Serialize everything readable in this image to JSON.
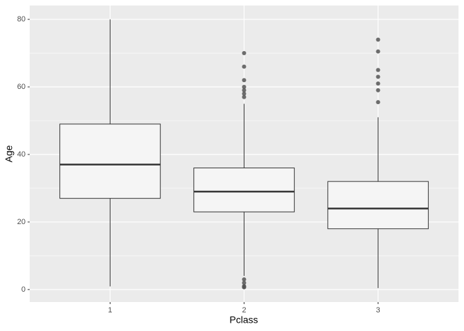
{
  "chart_data": {
    "type": "box",
    "x_label": "Pclass",
    "y_label": "Age",
    "categories": [
      "1",
      "2",
      "3"
    ],
    "boxes": [
      {
        "min": 0.92,
        "q1": 27,
        "median": 37,
        "q3": 49,
        "max": 80,
        "outliers": []
      },
      {
        "min": 4,
        "q1": 23,
        "median": 29,
        "q3": 36,
        "max": 55,
        "outliers": [
          57,
          58,
          59,
          60,
          62,
          66,
          70,
          3,
          2,
          1,
          0.83,
          0.67
        ]
      },
      {
        "min": 0.42,
        "q1": 18,
        "median": 24,
        "q3": 32,
        "max": 51,
        "outliers": [
          55.5,
          59,
          61,
          63,
          65,
          70.5,
          74
        ]
      }
    ],
    "ylim": [
      -3.7,
      84.1
    ],
    "yticks": [
      0,
      20,
      40,
      60,
      80
    ],
    "y_minor_ticks": [
      10,
      30,
      50,
      70
    ],
    "grid": true,
    "box_fill": "#f5f5f5",
    "line_color": "#333333",
    "outlier_color": "#555555"
  }
}
